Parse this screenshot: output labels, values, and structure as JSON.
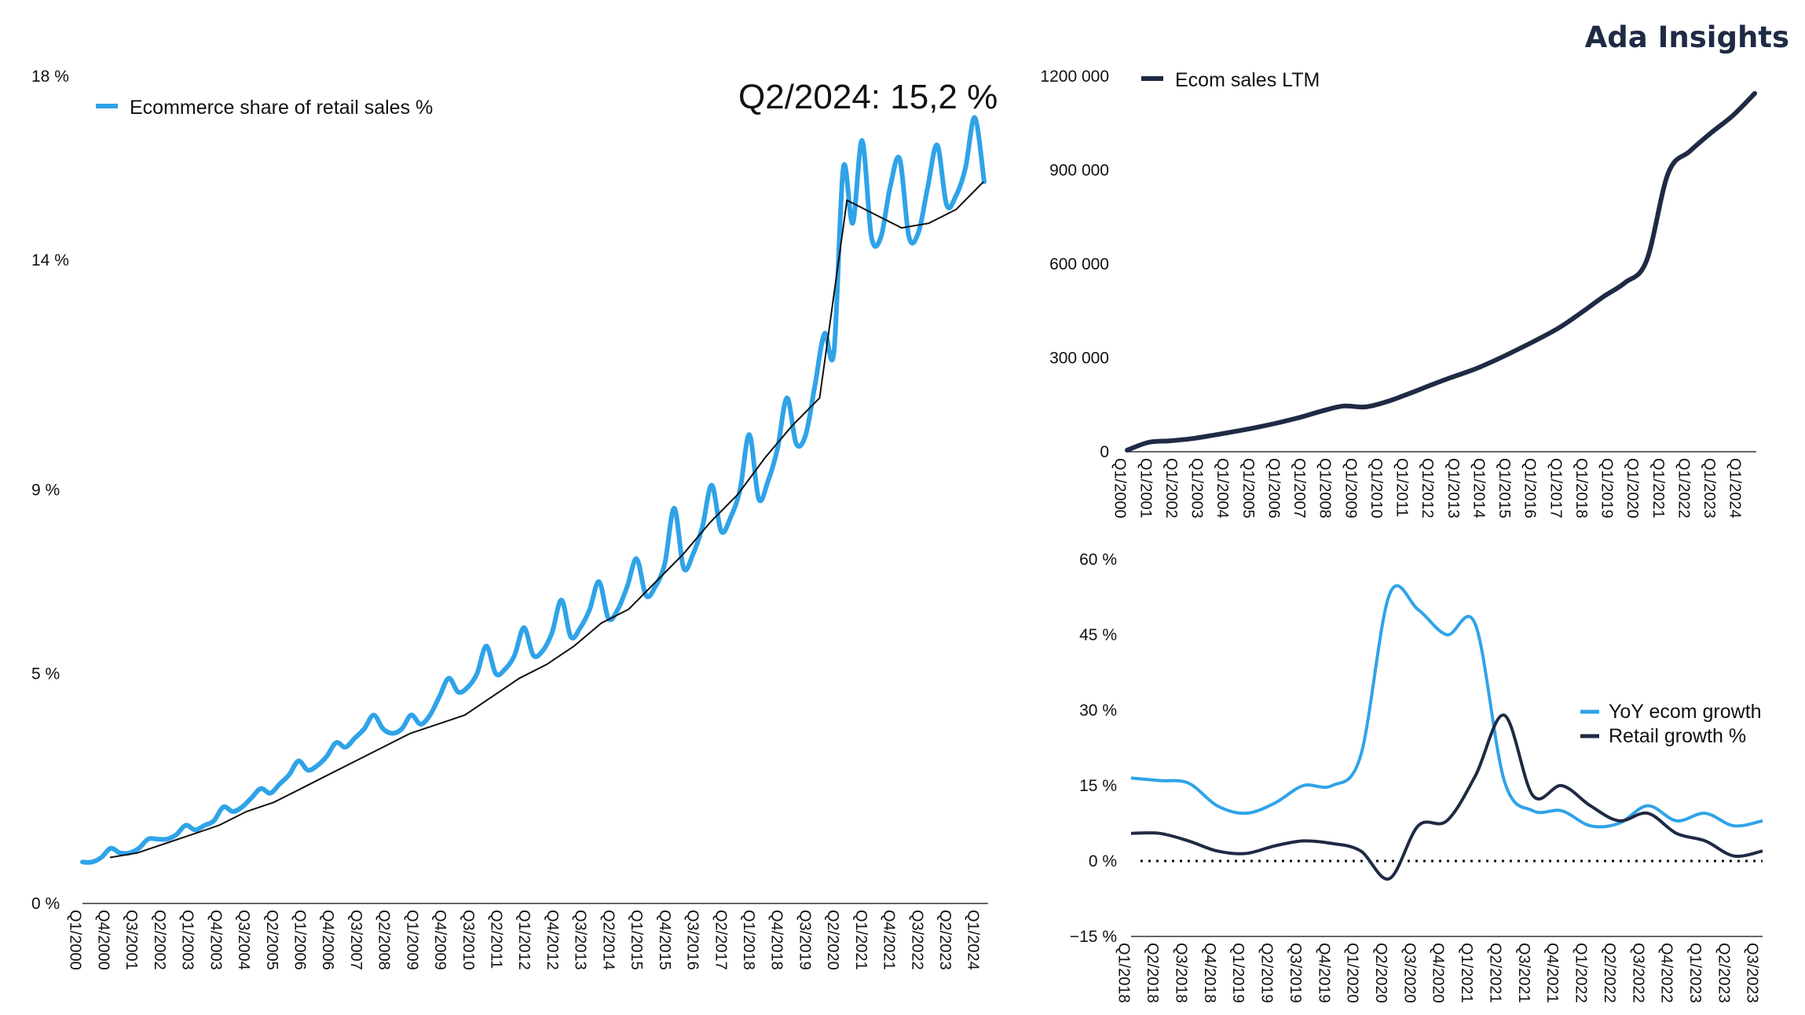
{
  "brand": "Ada Insights",
  "colors": {
    "light_blue": "#2fa3e8",
    "dark_navy": "#1f2a44",
    "axis": "#333333"
  },
  "chart_data": [
    {
      "id": "share",
      "type": "line",
      "title": "",
      "annotation": "Q2/2024: 15,2 %",
      "legend": [
        "Ecommerce share of retail sales %"
      ],
      "ylim": [
        0,
        18
      ],
      "ytick_values": [
        0,
        5,
        9,
        14,
        18
      ],
      "ytick_labels": [
        "0 %",
        "5 %",
        "9 %",
        "14 %",
        "18 %"
      ],
      "x_tick_labels": [
        "Q1/2000",
        "Q4/2000",
        "Q3/2001",
        "Q2/2002",
        "Q1/2003",
        "Q4/2003",
        "Q3/2004",
        "Q2/2005",
        "Q1/2006",
        "Q4/2006",
        "Q3/2007",
        "Q2/2008",
        "Q1/2009",
        "Q4/2009",
        "Q3/2010",
        "Q2/2011",
        "Q1/2012",
        "Q4/2012",
        "Q3/2013",
        "Q2/2014",
        "Q1/2015",
        "Q4/2015",
        "Q3/2016",
        "Q2/2017",
        "Q1/2018",
        "Q4/2018",
        "Q3/2019",
        "Q2/2020",
        "Q1/2021",
        "Q4/2021",
        "Q3/2022",
        "Q2/2023",
        "Q1/2024"
      ],
      "series": [
        {
          "name": "Ecommerce share of retail sales %",
          "color": "#2fa3e8",
          "values": [
            0.9,
            0.9,
            1.0,
            1.2,
            1.1,
            1.1,
            1.2,
            1.4,
            1.4,
            1.4,
            1.5,
            1.7,
            1.6,
            1.7,
            1.8,
            2.1,
            2.0,
            2.1,
            2.3,
            2.5,
            2.4,
            2.6,
            2.8,
            3.1,
            2.9,
            3.0,
            3.2,
            3.5,
            3.4,
            3.6,
            3.8,
            4.1,
            3.8,
            3.7,
            3.8,
            4.1,
            3.9,
            4.1,
            4.5,
            4.9,
            4.6,
            4.7,
            5.0,
            5.6,
            5.0,
            5.1,
            5.4,
            6.0,
            5.4,
            5.5,
            5.9,
            6.6,
            5.8,
            6.0,
            6.4,
            7.0,
            6.2,
            6.4,
            6.9,
            7.5,
            6.7,
            6.9,
            7.4,
            8.6,
            7.3,
            7.6,
            8.2,
            9.1,
            8.1,
            8.4,
            9.0,
            10.2,
            8.8,
            9.2,
            9.9,
            11.0,
            10.0,
            10.2,
            11.3,
            12.4,
            12.0,
            16.0,
            14.8,
            16.6,
            14.5,
            14.5,
            15.6,
            16.2,
            14.5,
            14.6,
            15.6,
            16.5,
            15.2,
            15.4,
            16.0,
            17.1,
            15.7
          ]
        },
        {
          "name": "Trend",
          "color": "#111111",
          "values": [
            1.0,
            1.1,
            1.3,
            1.5,
            1.7,
            2.0,
            2.2,
            2.5,
            2.8,
            3.1,
            3.4,
            3.7,
            3.9,
            4.1,
            4.5,
            4.9,
            5.2,
            5.6,
            6.1,
            6.4,
            7.0,
            7.6,
            8.3,
            8.9,
            9.7,
            10.4,
            11.0,
            15.3,
            15.0,
            14.7,
            14.8,
            15.1,
            15.7
          ]
        }
      ]
    },
    {
      "id": "ltm",
      "type": "line",
      "title": "",
      "legend": [
        "Ecom sales LTM"
      ],
      "ylim": [
        0,
        1200000
      ],
      "ytick_values": [
        0,
        300000,
        600000,
        900000,
        1200000
      ],
      "ytick_labels": [
        "0",
        "300 000",
        "600 000",
        "900 000",
        "1200 000"
      ],
      "x_tick_labels": [
        "Q1/2000",
        "Q1/2001",
        "Q1/2002",
        "Q1/2003",
        "Q1/2004",
        "Q1/2005",
        "Q1/2006",
        "Q1/2007",
        "Q1/2008",
        "Q1/2009",
        "Q1/2010",
        "Q1/2011",
        "Q1/2012",
        "Q1/2013",
        "Q1/2014",
        "Q1/2015",
        "Q1/2016",
        "Q1/2017",
        "Q1/2018",
        "Q1/2019",
        "Q1/2020",
        "Q1/2021",
        "Q1/2022",
        "Q1/2023",
        "Q1/2024"
      ],
      "series": [
        {
          "name": "Ecom sales LTM",
          "color": "#1f2a44",
          "values": [
            5000,
            30000,
            35000,
            42000,
            53000,
            65000,
            78000,
            93000,
            110000,
            130000,
            146000,
            143000,
            160000,
            185000,
            212000,
            238000,
            262000,
            292000,
            325000,
            360000,
            398000,
            445000,
            495000,
            540000,
            610000,
            890000,
            960000,
            1020000,
            1075000,
            1145000
          ]
        }
      ]
    },
    {
      "id": "growth",
      "type": "line",
      "title": "",
      "legend": [
        "YoY ecom growth",
        "Retail growth %"
      ],
      "ylim": [
        -15,
        60
      ],
      "ytick_values": [
        -15,
        0,
        15,
        30,
        45,
        60
      ],
      "ytick_labels": [
        "−15 %",
        "0 %",
        "15 %",
        "30 %",
        "45 %",
        "60 %"
      ],
      "x_tick_labels": [
        "Q1/2018",
        "Q2/2018",
        "Q3/2018",
        "Q4/2018",
        "Q1/2019",
        "Q2/2019",
        "Q3/2019",
        "Q4/2019",
        "Q1/2020",
        "Q2/2020",
        "Q3/2020",
        "Q4/2020",
        "Q1/2021",
        "Q2/2021",
        "Q3/2021",
        "Q4/2021",
        "Q1/2022",
        "Q2/2022",
        "Q3/2022",
        "Q4/2022",
        "Q1/2023",
        "Q2/2023",
        "Q3/2023"
      ],
      "series": [
        {
          "name": "YoY ecom growth",
          "color": "#2fa3e8",
          "values": [
            16.5,
            16,
            15.5,
            11,
            9.5,
            11.5,
            15,
            15,
            21,
            53,
            50,
            45,
            47,
            16,
            10,
            10,
            7,
            7.5,
            11,
            8,
            9.5,
            7,
            8
          ]
        },
        {
          "name": "Retail growth %",
          "color": "#1f2a44",
          "values": [
            5.5,
            5.5,
            4,
            2,
            1.5,
            3,
            4,
            3.5,
            2,
            -3.5,
            7,
            8,
            17,
            29,
            13,
            15,
            11,
            8,
            9.5,
            5.5,
            4,
            1,
            2
          ]
        }
      ]
    }
  ]
}
